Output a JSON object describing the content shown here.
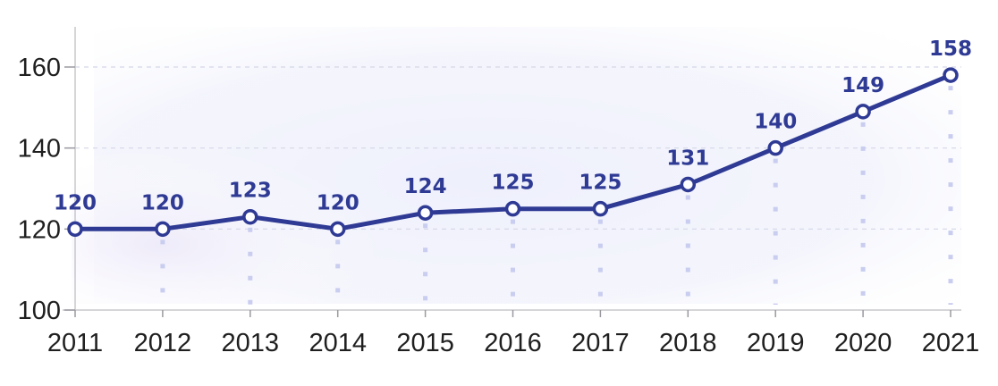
{
  "chart_data": {
    "type": "line",
    "title": "",
    "xlabel": "",
    "ylabel": "",
    "categories": [
      "2011",
      "2012",
      "2013",
      "2014",
      "2015",
      "2016",
      "2017",
      "2018",
      "2019",
      "2020",
      "2021"
    ],
    "series": [
      {
        "values": [
          120,
          120,
          123,
          120,
          124,
          125,
          125,
          131,
          140,
          149,
          158
        ]
      }
    ],
    "ylim": [
      100,
      160
    ],
    "yticks": [
      100,
      120,
      140,
      160
    ],
    "grid": "horizontal dashed",
    "legend": "none",
    "colors": {
      "line": "#2e3a94",
      "marker_fill": "#ffffff",
      "label": "#2e3a94",
      "drop_lines": "#c9cdef",
      "background_tint": "#e8ebfa"
    }
  }
}
